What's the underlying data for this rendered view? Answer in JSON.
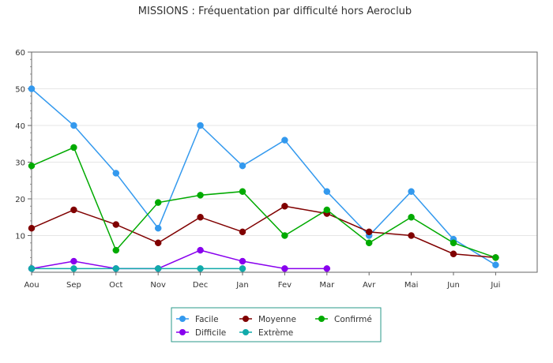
{
  "chart_data": {
    "type": "line",
    "title": "MISSIONS : Fréquentation par difficulté hors Aeroclub",
    "xlabel": "",
    "ylabel": "",
    "categories": [
      "Aou",
      "Sep",
      "Oct",
      "Nov",
      "Dec",
      "Jan",
      "Fev",
      "Mar",
      "Avr",
      "Mai",
      "Jun",
      "Jui"
    ],
    "ylim": [
      0,
      60
    ],
    "yticks": [
      10,
      20,
      30,
      40,
      50,
      60
    ],
    "grid": true,
    "legend_position": "bottom-center",
    "series": [
      {
        "name": "Facile",
        "color": "#3399ee",
        "values": [
          50,
          40,
          27,
          12,
          40,
          29,
          36,
          22,
          10,
          22,
          9,
          2
        ]
      },
      {
        "name": "Moyenne",
        "color": "#800000",
        "values": [
          12,
          17,
          13,
          8,
          15,
          11,
          18,
          16,
          11,
          10,
          5,
          4
        ]
      },
      {
        "name": "Confirmé",
        "color": "#00aa00",
        "values": [
          29,
          34,
          6,
          19,
          21,
          22,
          10,
          17,
          8,
          15,
          8,
          4
        ]
      },
      {
        "name": "Difficile",
        "color": "#8800ee",
        "values": [
          1,
          3,
          1,
          1,
          6,
          3,
          1,
          1,
          null,
          null,
          null,
          null
        ]
      },
      {
        "name": "Extrème",
        "color": "#11aaaa",
        "values": [
          1,
          1,
          1,
          1,
          1,
          1,
          null,
          null,
          null,
          null,
          null,
          null
        ]
      }
    ]
  }
}
